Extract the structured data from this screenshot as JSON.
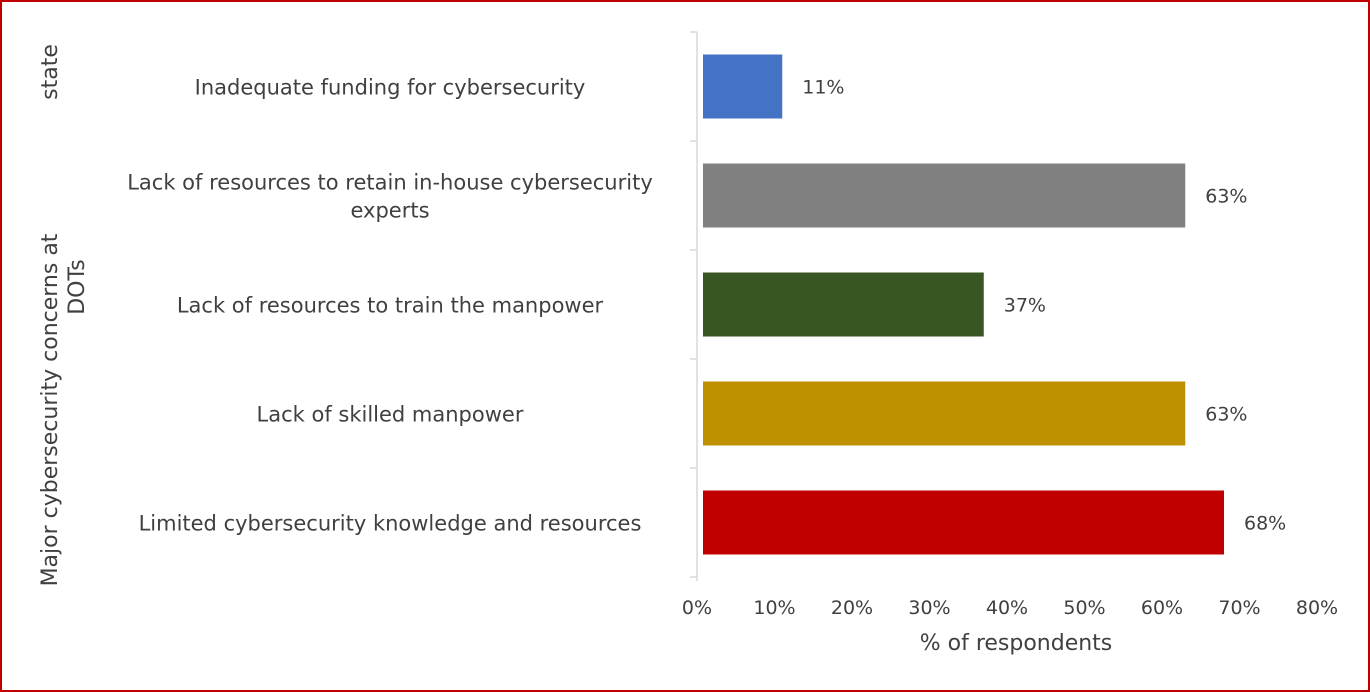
{
  "chart_data": {
    "type": "bar",
    "orientation": "horizontal",
    "categories": [
      "Inadequate funding for cybersecurity",
      "Lack of resources to retain in-house cybersecurity experts",
      "Lack of resources to train the manpower",
      "Lack of skilled manpower",
      "Limited cybersecurity knowledge and resources"
    ],
    "category_lines": [
      [
        "Inadequate funding for cybersecurity"
      ],
      [
        "Lack of resources to retain in-house cybersecurity",
        "experts"
      ],
      [
        "Lack of resources to train the manpower"
      ],
      [
        "Lack of skilled manpower"
      ],
      [
        "Limited cybersecurity knowledge and resources"
      ]
    ],
    "values": [
      11,
      63,
      37,
      63,
      68
    ],
    "value_labels": [
      "11%",
      "63%",
      "37%",
      "63%",
      "68%"
    ],
    "colors": [
      "#4472c4",
      "#808080",
      "#375623",
      "#bf9000",
      "#c00000"
    ],
    "xlabel": "% of respondents",
    "ylabel_lines": [
      "Major cybersecurity concerns at",
      "state",
      "DOTs"
    ],
    "xlim": [
      0,
      80
    ],
    "xticks": [
      0,
      10,
      20,
      30,
      40,
      50,
      60,
      70,
      80
    ],
    "xtick_labels": [
      "0%",
      "10%",
      "20%",
      "30%",
      "40%",
      "50%",
      "60%",
      "70%",
      "80%"
    ],
    "grid": false,
    "legend": "none"
  },
  "frame_color": "#c00000"
}
